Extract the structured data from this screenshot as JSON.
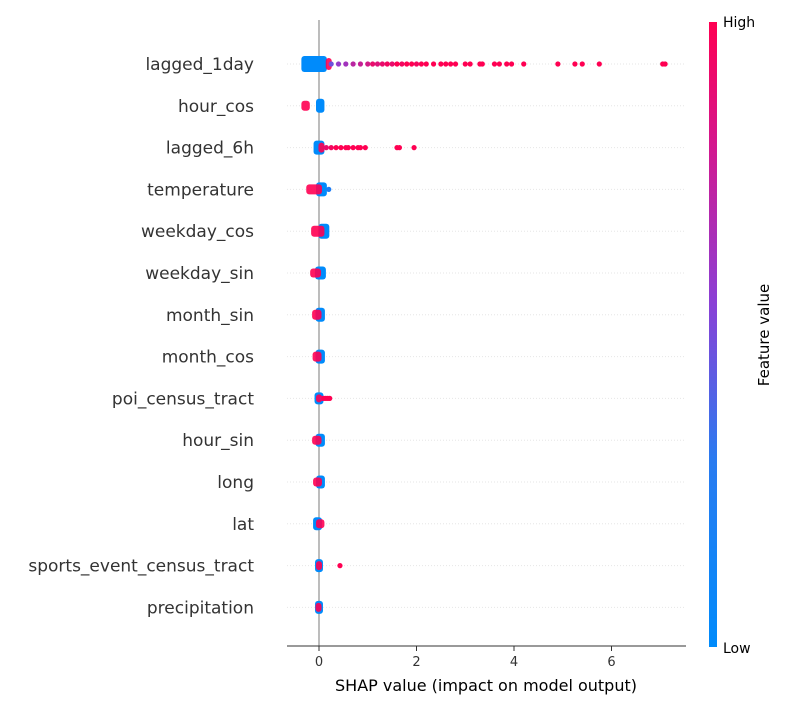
{
  "chart_data": {
    "type": "scatter",
    "subtype": "shap-beeswarm",
    "xlabel": "SHAP value (impact on model output)",
    "xlim": [
      -0.65,
      7.45
    ],
    "xticks": [
      0,
      2,
      4,
      6
    ],
    "colorbar": {
      "label": "Feature value",
      "high_label": "High",
      "low_label": "Low"
    },
    "colors": {
      "low": "#008bfb",
      "high": "#ff0052",
      "mid": "#8a40d6",
      "zero_line": "#999999",
      "row_grid": "#e6e6e6"
    },
    "features": [
      {
        "name": "lagged_1day",
        "dense": {
          "min": -0.3,
          "max": 0.2,
          "low_min": -0.3,
          "low_max": 0.1,
          "high_min": 0.2,
          "high_max": 0.2,
          "height": 16
        },
        "points": [
          {
            "x": 0.25,
            "v": 0.4
          },
          {
            "x": 0.4,
            "v": 0.55
          },
          {
            "x": 0.55,
            "v": 0.6
          },
          {
            "x": 0.7,
            "v": 0.7
          },
          {
            "x": 0.85,
            "v": 0.75
          },
          {
            "x": 1.0,
            "v": 0.8
          },
          {
            "x": 1.1,
            "v": 0.9
          },
          {
            "x": 1.2,
            "v": 0.85
          },
          {
            "x": 1.3,
            "v": 0.9
          },
          {
            "x": 1.4,
            "v": 0.95
          },
          {
            "x": 1.5,
            "v": 0.9
          },
          {
            "x": 1.6,
            "v": 1.0
          },
          {
            "x": 1.7,
            "v": 0.95
          },
          {
            "x": 1.8,
            "v": 1.0
          },
          {
            "x": 1.9,
            "v": 1.0
          },
          {
            "x": 2.0,
            "v": 0.95
          },
          {
            "x": 2.1,
            "v": 1.0
          },
          {
            "x": 2.2,
            "v": 1.0
          },
          {
            "x": 2.35,
            "v": 1.0
          },
          {
            "x": 2.5,
            "v": 1.0
          },
          {
            "x": 2.6,
            "v": 1.0
          },
          {
            "x": 2.7,
            "v": 1.0
          },
          {
            "x": 2.8,
            "v": 1.0
          },
          {
            "x": 3.0,
            "v": 1.0
          },
          {
            "x": 3.1,
            "v": 1.0
          },
          {
            "x": 3.3,
            "v": 1.0
          },
          {
            "x": 3.35,
            "v": 1.0
          },
          {
            "x": 3.6,
            "v": 1.0
          },
          {
            "x": 3.7,
            "v": 1.0
          },
          {
            "x": 3.85,
            "v": 1.0
          },
          {
            "x": 3.95,
            "v": 1.0
          },
          {
            "x": 4.2,
            "v": 1.0
          },
          {
            "x": 4.9,
            "v": 1.0
          },
          {
            "x": 5.25,
            "v": 1.0
          },
          {
            "x": 5.4,
            "v": 1.0
          },
          {
            "x": 5.75,
            "v": 1.0
          },
          {
            "x": 7.05,
            "v": 1.0
          },
          {
            "x": 7.1,
            "v": 1.0
          }
        ]
      },
      {
        "name": "hour_cos",
        "dense": {
          "min": -0.3,
          "max": 0.05,
          "low_min": 0.0,
          "low_max": 0.05,
          "high_min": -0.3,
          "high_max": -0.25,
          "height": 14
        },
        "points": []
      },
      {
        "name": "lagged_6h",
        "dense": {
          "min": -0.05,
          "max": 0.05,
          "low_min": -0.05,
          "low_max": 0.05,
          "high_min": 0.05,
          "high_max": 0.05,
          "height": 14
        },
        "points": [
          {
            "x": 0.15,
            "v": 0.9
          },
          {
            "x": 0.25,
            "v": 0.95
          },
          {
            "x": 0.35,
            "v": 1.0
          },
          {
            "x": 0.45,
            "v": 1.0
          },
          {
            "x": 0.55,
            "v": 1.0
          },
          {
            "x": 0.6,
            "v": 1.0
          },
          {
            "x": 0.7,
            "v": 1.0
          },
          {
            "x": 0.8,
            "v": 1.0
          },
          {
            "x": 0.85,
            "v": 1.0
          },
          {
            "x": 0.95,
            "v": 1.0
          },
          {
            "x": 1.6,
            "v": 1.0
          },
          {
            "x": 1.65,
            "v": 1.0
          },
          {
            "x": 1.95,
            "v": 1.0
          }
        ]
      },
      {
        "name": "temperature",
        "dense": {
          "min": -0.2,
          "max": 0.1,
          "low_min": 0.0,
          "low_max": 0.1,
          "high_min": -0.2,
          "high_max": 0.0,
          "height": 14
        },
        "points": [
          {
            "x": 0.2,
            "v": 0.1
          }
        ]
      },
      {
        "name": "weekday_cos",
        "dense": {
          "min": -0.1,
          "max": 0.15,
          "low_min": 0.05,
          "low_max": 0.15,
          "high_min": -0.1,
          "high_max": 0.05,
          "height": 15
        },
        "points": []
      },
      {
        "name": "weekday_sin",
        "dense": {
          "min": -0.12,
          "max": 0.08,
          "low_min": -0.02,
          "low_max": 0.08,
          "high_min": -0.12,
          "high_max": -0.02,
          "height": 13
        },
        "points": []
      },
      {
        "name": "month_sin",
        "dense": {
          "min": -0.08,
          "max": 0.06,
          "low_min": -0.01,
          "low_max": 0.06,
          "high_min": -0.08,
          "high_max": -0.01,
          "height": 14
        },
        "points": []
      },
      {
        "name": "month_cos",
        "dense": {
          "min": -0.07,
          "max": 0.06,
          "low_min": -0.01,
          "low_max": 0.06,
          "high_min": -0.07,
          "high_max": -0.01,
          "height": 14
        },
        "points": []
      },
      {
        "name": "poi_census_tract",
        "dense": {
          "min": -0.03,
          "max": 0.03,
          "low_min": -0.03,
          "low_max": 0.03,
          "high_min": 0.0,
          "high_max": 0.0,
          "height": 12
        },
        "points": [
          {
            "x": 0.06,
            "v": 0.9
          },
          {
            "x": 0.1,
            "v": 1.0
          },
          {
            "x": 0.14,
            "v": 1.0
          },
          {
            "x": 0.18,
            "v": 1.0
          },
          {
            "x": 0.22,
            "v": 1.0
          }
        ]
      },
      {
        "name": "hour_sin",
        "dense": {
          "min": -0.08,
          "max": 0.06,
          "low_min": -0.01,
          "low_max": 0.06,
          "high_min": -0.08,
          "high_max": -0.01,
          "height": 13
        },
        "points": []
      },
      {
        "name": "long",
        "dense": {
          "min": -0.06,
          "max": 0.06,
          "low_min": 0.0,
          "low_max": 0.06,
          "high_min": -0.06,
          "high_max": 0.0,
          "height": 13
        },
        "points": []
      },
      {
        "name": "lat",
        "dense": {
          "min": -0.06,
          "max": 0.05,
          "low_min": -0.06,
          "low_max": 0.0,
          "high_min": 0.0,
          "high_max": 0.05,
          "height": 13
        },
        "points": []
      },
      {
        "name": "sports_event_census_tract",
        "dense": {
          "min": -0.02,
          "max": 0.02,
          "low_min": -0.02,
          "low_max": 0.02,
          "high_min": 0.0,
          "high_max": 0.0,
          "height": 13
        },
        "points": [
          {
            "x": 0.43,
            "v": 1.0
          }
        ]
      },
      {
        "name": "precipitation",
        "dense": {
          "min": -0.02,
          "max": 0.02,
          "low_min": -0.02,
          "low_max": 0.02,
          "high_min": -0.01,
          "high_max": -0.01,
          "height": 13
        },
        "points": []
      }
    ]
  }
}
